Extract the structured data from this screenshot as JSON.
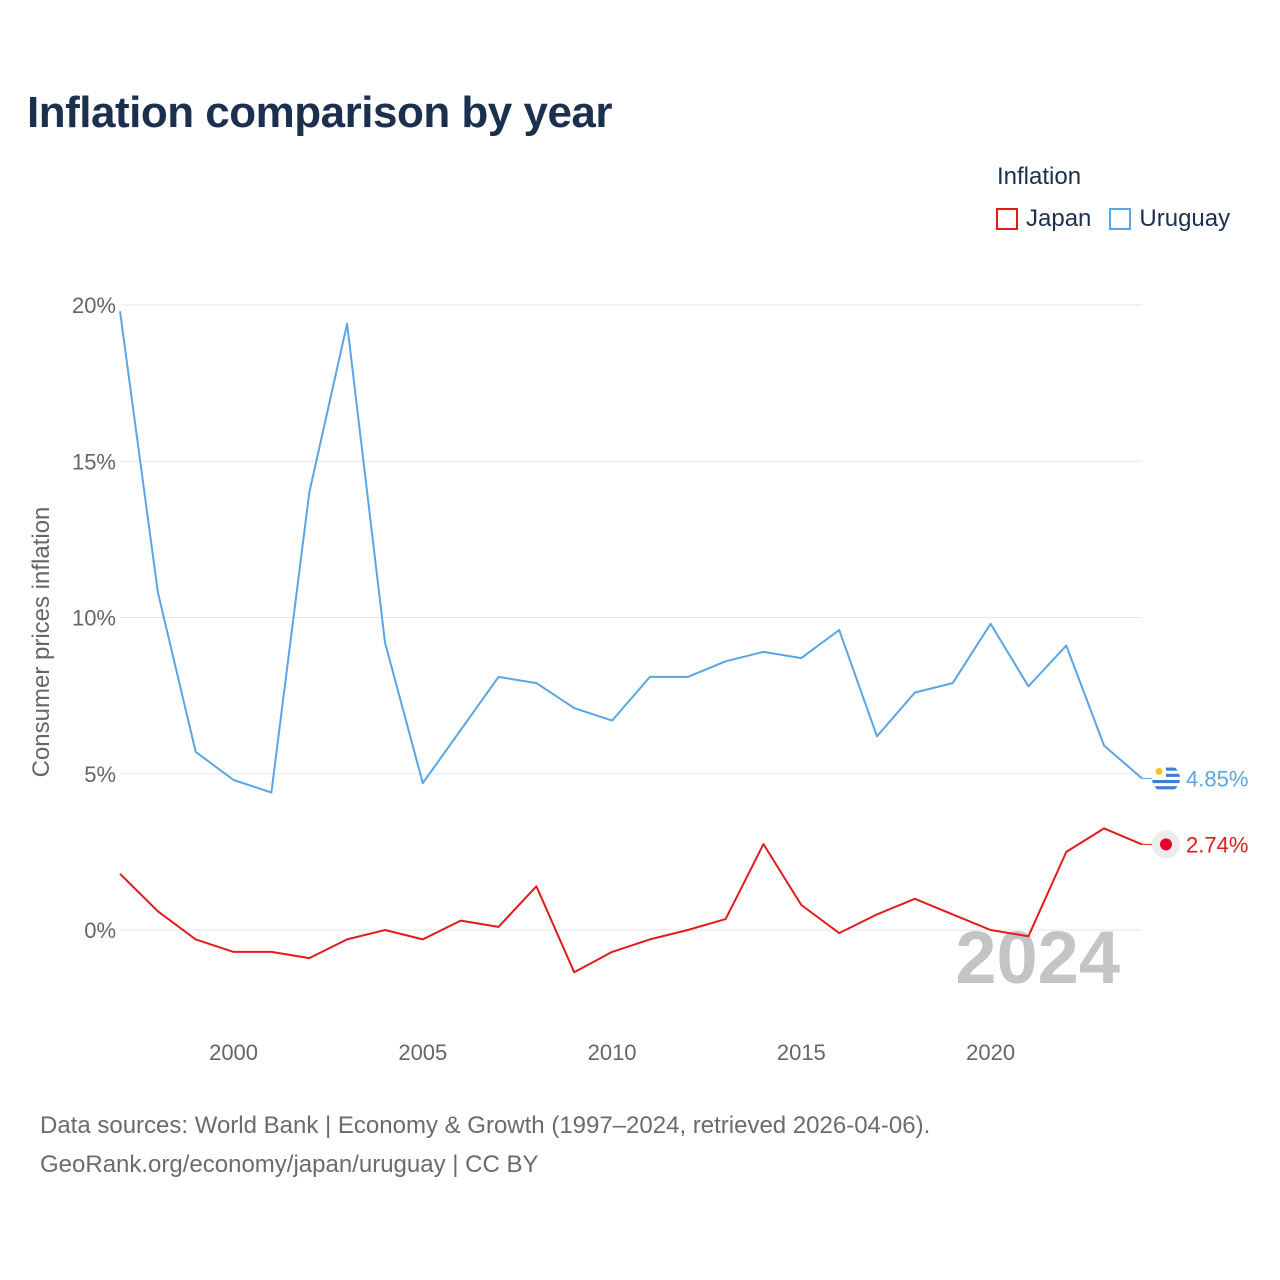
{
  "title": "Inflation comparison by year",
  "legend": {
    "title": "Inflation",
    "items": [
      {
        "label": "Japan",
        "color": "#e31a1c"
      },
      {
        "label": "Uruguay",
        "color": "#5aa5e6"
      }
    ]
  },
  "footer": {
    "line1": "Data sources: World Bank | Economy & Growth (1997–2024, retrieved 2026-04-06).",
    "line2": "GeoRank.org/economy/japan/uruguay | CC BY"
  },
  "chart_data": {
    "type": "line",
    "ylabel": "Consumer prices inflation",
    "xlabel": "",
    "ylim": [
      -2.5,
      20
    ],
    "xlim": [
      1997,
      2024
    ],
    "yticks": [
      0,
      5,
      10,
      15,
      20
    ],
    "ytick_labels": [
      "0%",
      "5%",
      "10%",
      "15%",
      "20%"
    ],
    "xticks": [
      2000,
      2005,
      2010,
      2015,
      2020
    ],
    "xtick_labels": [
      "2000",
      "2005",
      "2010",
      "2015",
      "2020"
    ],
    "grid": true,
    "watermark_year": "2024",
    "x": [
      1997,
      1998,
      1999,
      2000,
      2001,
      2002,
      2003,
      2004,
      2005,
      2006,
      2007,
      2008,
      2009,
      2010,
      2011,
      2012,
      2013,
      2014,
      2015,
      2016,
      2017,
      2018,
      2019,
      2020,
      2021,
      2022,
      2023,
      2024
    ],
    "series": [
      {
        "name": "Uruguay",
        "color": "#5aa5e6",
        "end_label": "4.85%",
        "values": [
          19.8,
          10.8,
          5.7,
          4.8,
          4.4,
          14.0,
          19.4,
          9.2,
          4.7,
          6.4,
          8.1,
          7.9,
          7.1,
          6.7,
          8.1,
          8.1,
          8.6,
          8.9,
          8.7,
          9.6,
          6.2,
          7.6,
          7.9,
          9.8,
          7.8,
          9.1,
          5.9,
          4.85
        ]
      },
      {
        "name": "Japan",
        "color": "#e31a1c",
        "end_label": "2.74%",
        "values": [
          1.8,
          0.6,
          -0.3,
          -0.7,
          -0.7,
          -0.9,
          -0.3,
          0.0,
          -0.3,
          0.3,
          0.1,
          1.4,
          -1.35,
          -0.7,
          -0.3,
          0.0,
          0.35,
          2.75,
          0.8,
          -0.1,
          0.5,
          1.0,
          0.5,
          0.0,
          -0.2,
          2.5,
          3.25,
          2.74
        ]
      }
    ]
  }
}
